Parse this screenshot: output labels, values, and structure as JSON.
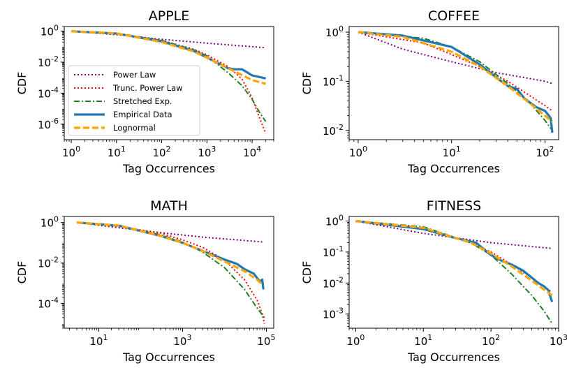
{
  "figure": {
    "legend_labels": [
      "Power Law",
      "Trunc. Power Law",
      "Stretched Exp.",
      "Empirical Data",
      "Lognormal"
    ],
    "x_axis_label": "Tag Occurrences",
    "y_axis_label": "CDF"
  },
  "chart_data": [
    {
      "type": "line",
      "title": "APPLE",
      "xlabel": "Tag Occurrences",
      "ylabel": "CDF",
      "xscale": "log",
      "yscale": "log",
      "xlim": [
        0.7,
        30000
      ],
      "ylim": [
        1e-07,
        2
      ],
      "xticks": [
        "10^0",
        "10^1",
        "10^2",
        "10^3",
        "10^4"
      ],
      "yticks": [
        "10^0",
        "10^-2",
        "10^-4",
        "10^-6"
      ],
      "legend": {
        "position": "lower-left",
        "visible": true
      },
      "series": [
        {
          "name": "Power Law",
          "color": "#800080",
          "style": "dotted",
          "x": [
            1,
            10,
            100,
            1000,
            10000,
            20000
          ],
          "y": [
            1,
            0.6,
            0.3,
            0.17,
            0.1,
            0.085
          ]
        },
        {
          "name": "Trunc. Power Law",
          "color": "#ff0000",
          "style": "dotted",
          "x": [
            1,
            10,
            100,
            500,
            1000,
            3000,
            6000,
            10000,
            15000,
            20000
          ],
          "y": [
            1,
            0.65,
            0.25,
            0.07,
            0.03,
            0.005,
            0.0008,
            5e-05,
            2e-06,
            2.5e-07
          ]
        },
        {
          "name": "Stretched Exp.",
          "color": "#1e7f1e",
          "style": "dashdot",
          "x": [
            1,
            10,
            100,
            500,
            1000,
            3000,
            6000,
            10000,
            15000,
            20000
          ],
          "y": [
            1,
            0.75,
            0.25,
            0.065,
            0.025,
            0.002,
            0.0003,
            4e-05,
            5e-06,
            1.5e-06
          ]
        },
        {
          "name": "Empirical Data",
          "color": "#1f77b4",
          "style": "solid",
          "x": [
            1,
            10,
            100,
            500,
            1000,
            3000,
            4000,
            6000,
            10000,
            20000
          ],
          "y": [
            1,
            0.7,
            0.22,
            0.055,
            0.02,
            0.004,
            0.0035,
            0.0035,
            0.0014,
            0.0009
          ]
        },
        {
          "name": "Lognormal",
          "color": "#ffa500",
          "style": "dashed",
          "x": [
            1,
            10,
            100,
            500,
            1000,
            3000,
            10000,
            20000
          ],
          "y": [
            1,
            0.72,
            0.2,
            0.05,
            0.02,
            0.004,
            0.0007,
            0.0004
          ]
        }
      ]
    },
    {
      "type": "line",
      "title": "COFFEE",
      "xlabel": "Tag Occurrences",
      "ylabel": "CDF",
      "xscale": "log",
      "yscale": "log",
      "xlim": [
        0.8,
        140
      ],
      "ylim": [
        0.0065,
        1.3
      ],
      "xticks": [
        "10^0",
        "10^1",
        "10^2"
      ],
      "yticks": [
        "10^0",
        "10^-1",
        "10^-2"
      ],
      "series": [
        {
          "name": "Power Law",
          "color": "#800080",
          "style": "dotted",
          "x": [
            1,
            3,
            10,
            30,
            100,
            120
          ],
          "y": [
            1,
            0.45,
            0.25,
            0.15,
            0.1,
            0.09
          ]
        },
        {
          "name": "Trunc. Power Law",
          "color": "#ff0000",
          "style": "dotted",
          "x": [
            1,
            5,
            10,
            20,
            40,
            70,
            100,
            120
          ],
          "y": [
            1,
            0.6,
            0.35,
            0.2,
            0.1,
            0.05,
            0.032,
            0.025
          ]
        },
        {
          "name": "Stretched Exp.",
          "color": "#1e7f1e",
          "style": "dashdot",
          "x": [
            1,
            5,
            10,
            20,
            40,
            70,
            100,
            120
          ],
          "y": [
            1,
            0.75,
            0.5,
            0.25,
            0.09,
            0.035,
            0.016,
            0.01
          ]
        },
        {
          "name": "Empirical Data",
          "color": "#1f77b4",
          "style": "solid",
          "x": [
            1,
            3,
            10,
            20,
            30,
            40,
            50,
            60,
            80,
            100,
            115,
            120
          ],
          "y": [
            1,
            0.85,
            0.5,
            0.22,
            0.12,
            0.08,
            0.07,
            0.045,
            0.03,
            0.025,
            0.018,
            0.009
          ]
        },
        {
          "name": "Lognormal",
          "color": "#ffa500",
          "style": "dashed",
          "x": [
            1,
            3,
            10,
            20,
            40,
            70,
            100,
            120
          ],
          "y": [
            1,
            0.8,
            0.4,
            0.2,
            0.08,
            0.035,
            0.02,
            0.015
          ]
        }
      ]
    },
    {
      "type": "line",
      "title": "MATH",
      "xlabel": "Tag Occurrences",
      "ylabel": "CDF",
      "xscale": "log",
      "yscale": "log",
      "xlim": [
        1.5,
        150000
      ],
      "ylim": [
        6e-06,
        2
      ],
      "xticks": [
        "10^1",
        "10^3",
        "10^5"
      ],
      "yticks": [
        "10^0",
        "10^-2",
        "10^-4"
      ],
      "series": [
        {
          "name": "Power Law",
          "color": "#800080",
          "style": "dotted",
          "x": [
            3,
            30,
            300,
            3000,
            30000,
            80000
          ],
          "y": [
            1,
            0.55,
            0.32,
            0.19,
            0.13,
            0.11
          ]
        },
        {
          "name": "Trunc. Power Law",
          "color": "#ff0000",
          "style": "dotted",
          "x": [
            3,
            30,
            300,
            1000,
            3000,
            10000,
            30000,
            60000,
            80000,
            90000
          ],
          "y": [
            1,
            0.65,
            0.3,
            0.14,
            0.06,
            0.014,
            0.0015,
            0.00015,
            3e-05,
            1e-05
          ]
        },
        {
          "name": "Stretched Exp.",
          "color": "#1e7f1e",
          "style": "dashdot",
          "x": [
            3,
            30,
            300,
            1000,
            3000,
            10000,
            30000,
            60000,
            90000
          ],
          "y": [
            1,
            0.7,
            0.25,
            0.11,
            0.035,
            0.006,
            0.0005,
            6e-05,
            2e-05
          ]
        },
        {
          "name": "Empirical Data",
          "color": "#1f77b4",
          "style": "solid",
          "x": [
            3,
            30,
            300,
            1000,
            3000,
            10000,
            20000,
            30000,
            50000,
            70000,
            80000,
            85000
          ],
          "y": [
            1,
            0.7,
            0.22,
            0.1,
            0.04,
            0.015,
            0.009,
            0.005,
            0.003,
            0.0012,
            0.0015,
            0.0005
          ]
        },
        {
          "name": "Lognormal",
          "color": "#ffa500",
          "style": "dashed",
          "x": [
            3,
            30,
            300,
            1000,
            3000,
            10000,
            30000,
            60000,
            85000
          ],
          "y": [
            1,
            0.72,
            0.22,
            0.1,
            0.04,
            0.012,
            0.004,
            0.0015,
            0.0008
          ]
        }
      ]
    },
    {
      "type": "line",
      "title": "FITNESS",
      "xlabel": "Tag Occurrences",
      "ylabel": "CDF",
      "xscale": "log",
      "yscale": "log",
      "xlim": [
        0.8,
        1000
      ],
      "ylim": [
        0.00035,
        1.4
      ],
      "xticks": [
        "10^0",
        "10^1",
        "10^2",
        "10^3"
      ],
      "yticks": [
        "10^0",
        "10^-1",
        "10^-2",
        "10^-3"
      ],
      "series": [
        {
          "name": "Power Law",
          "color": "#800080",
          "style": "dotted",
          "x": [
            1,
            10,
            100,
            800
          ],
          "y": [
            1,
            0.4,
            0.2,
            0.13
          ]
        },
        {
          "name": "Trunc. Power Law",
          "color": "#ff0000",
          "style": "dotted",
          "x": [
            1,
            10,
            50,
            100,
            200,
            400,
            800
          ],
          "y": [
            1,
            0.55,
            0.2,
            0.1,
            0.04,
            0.015,
            0.005
          ]
        },
        {
          "name": "Stretched Exp.",
          "color": "#1e7f1e",
          "style": "dashdot",
          "x": [
            1,
            10,
            50,
            100,
            200,
            400,
            600,
            800
          ],
          "y": [
            1,
            0.65,
            0.2,
            0.08,
            0.02,
            0.004,
            0.0013,
            0.0005
          ]
        },
        {
          "name": "Empirical Data",
          "color": "#1f77b4",
          "style": "solid",
          "x": [
            1,
            10,
            30,
            60,
            100,
            150,
            200,
            300,
            400,
            500,
            600,
            700,
            800
          ],
          "y": [
            1,
            0.55,
            0.28,
            0.2,
            0.08,
            0.05,
            0.04,
            0.025,
            0.015,
            0.01,
            0.008,
            0.006,
            0.0025
          ]
        },
        {
          "name": "Lognormal",
          "color": "#ffa500",
          "style": "dashed",
          "x": [
            1,
            10,
            50,
            100,
            200,
            400,
            800
          ],
          "y": [
            1,
            0.6,
            0.2,
            0.09,
            0.035,
            0.012,
            0.004
          ]
        }
      ]
    }
  ]
}
